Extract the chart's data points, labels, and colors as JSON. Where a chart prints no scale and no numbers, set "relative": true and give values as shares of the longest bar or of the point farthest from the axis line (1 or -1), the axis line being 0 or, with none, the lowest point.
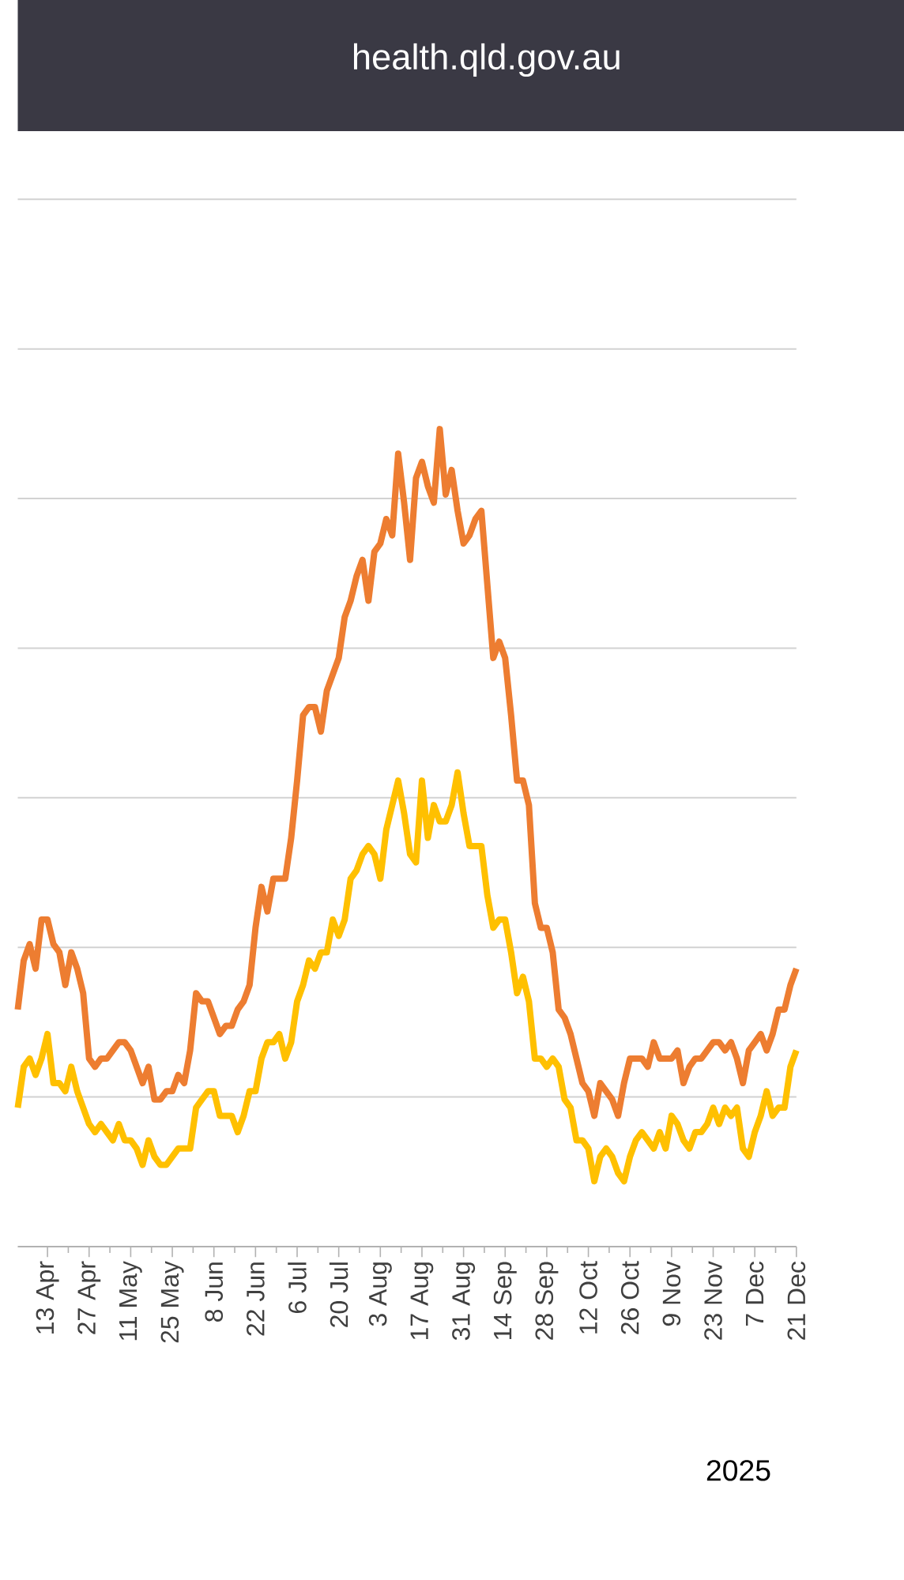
{
  "chart_data": {
    "type": "line",
    "relative": true,
    "grid": "y",
    "annotations": [
      "health.qld.gov.au",
      "2025"
    ],
    "xlim": [
      "2025-04-03",
      "2025-12-21"
    ],
    "xticks": [
      {
        "value": "2025-04-13",
        "label": "13 Apr"
      },
      {
        "value": "2025-04-27",
        "label": "27 Apr"
      },
      {
        "value": "2025-05-11",
        "label": "11 May"
      },
      {
        "value": "2025-05-25",
        "label": "25 May"
      },
      {
        "value": "2025-06-08",
        "label": "8 Jun"
      },
      {
        "value": "2025-06-22",
        "label": "22 Jun"
      },
      {
        "value": "2025-07-06",
        "label": "6 Jul"
      },
      {
        "value": "2025-07-20",
        "label": "20 Jul"
      },
      {
        "value": "2025-08-03",
        "label": "3 Aug"
      },
      {
        "value": "2025-08-17",
        "label": "17 Aug"
      },
      {
        "value": "2025-08-31",
        "label": "31 Aug"
      },
      {
        "value": "2025-09-14",
        "label": "14 Sep"
      },
      {
        "value": "2025-09-28",
        "label": "28 Sep"
      },
      {
        "value": "2025-10-12",
        "label": "12 Oct"
      },
      {
        "value": "2025-10-26",
        "label": "26 Oct"
      },
      {
        "value": "2025-11-09",
        "label": "9 Nov"
      },
      {
        "value": "2025-11-23",
        "label": "23 Nov"
      },
      {
        "value": "2025-12-07",
        "label": "7 Dec"
      },
      {
        "value": "2025-12-21",
        "label": "21 Dec"
      }
    ],
    "x": [
      "2025-04-03",
      "2025-04-05",
      "2025-04-07",
      "2025-04-09",
      "2025-04-11",
      "2025-04-13",
      "2025-04-15",
      "2025-04-17",
      "2025-04-19",
      "2025-04-21",
      "2025-04-23",
      "2025-04-25",
      "2025-04-27",
      "2025-04-29",
      "2025-05-01",
      "2025-05-03",
      "2025-05-05",
      "2025-05-07",
      "2025-05-09",
      "2025-05-11",
      "2025-05-13",
      "2025-05-15",
      "2025-05-17",
      "2025-05-19",
      "2025-05-21",
      "2025-05-23",
      "2025-05-25",
      "2025-05-27",
      "2025-05-29",
      "2025-05-31",
      "2025-06-02",
      "2025-06-04",
      "2025-06-06",
      "2025-06-08",
      "2025-06-10",
      "2025-06-12",
      "2025-06-14",
      "2025-06-16",
      "2025-06-18",
      "2025-06-20",
      "2025-06-22",
      "2025-06-24",
      "2025-06-26",
      "2025-06-28",
      "2025-06-30",
      "2025-07-02",
      "2025-07-04",
      "2025-07-06",
      "2025-07-08",
      "2025-07-10",
      "2025-07-12",
      "2025-07-14",
      "2025-07-16",
      "2025-07-18",
      "2025-07-20",
      "2025-07-22",
      "2025-07-24",
      "2025-07-26",
      "2025-07-28",
      "2025-07-30",
      "2025-08-01",
      "2025-08-03",
      "2025-08-05",
      "2025-08-07",
      "2025-08-09",
      "2025-08-11",
      "2025-08-13",
      "2025-08-15",
      "2025-08-17",
      "2025-08-19",
      "2025-08-21",
      "2025-08-23",
      "2025-08-25",
      "2025-08-27",
      "2025-08-29",
      "2025-08-31",
      "2025-09-02",
      "2025-09-04",
      "2025-09-06",
      "2025-09-08",
      "2025-09-10",
      "2025-09-12",
      "2025-09-14",
      "2025-09-16",
      "2025-09-18",
      "2025-09-20",
      "2025-09-22",
      "2025-09-24",
      "2025-09-26",
      "2025-09-28",
      "2025-09-30",
      "2025-10-02",
      "2025-10-04",
      "2025-10-06",
      "2025-10-08",
      "2025-10-10",
      "2025-10-12",
      "2025-10-14",
      "2025-10-16",
      "2025-10-18",
      "2025-10-20",
      "2025-10-22",
      "2025-10-24",
      "2025-10-26",
      "2025-10-28",
      "2025-10-30",
      "2025-11-01",
      "2025-11-03",
      "2025-11-05",
      "2025-11-07",
      "2025-11-09",
      "2025-11-11",
      "2025-11-13",
      "2025-11-15",
      "2025-11-17",
      "2025-11-19",
      "2025-11-21",
      "2025-11-23",
      "2025-11-25",
      "2025-11-27",
      "2025-11-29",
      "2025-12-01",
      "2025-12-03",
      "2025-12-05",
      "2025-12-07",
      "2025-12-09",
      "2025-12-11",
      "2025-12-13",
      "2025-12-15",
      "2025-12-17",
      "2025-12-19",
      "2025-12-21"
    ],
    "series": [
      {
        "color": "#ed7d31",
        "values": [
          0.29,
          0.35,
          0.37,
          0.34,
          0.4,
          0.4,
          0.37,
          0.36,
          0.32,
          0.36,
          0.34,
          0.31,
          0.23,
          0.22,
          0.23,
          0.23,
          0.24,
          0.25,
          0.25,
          0.24,
          0.22,
          0.2,
          0.22,
          0.18,
          0.18,
          0.19,
          0.19,
          0.21,
          0.2,
          0.24,
          0.31,
          0.3,
          0.3,
          0.28,
          0.26,
          0.27,
          0.27,
          0.29,
          0.3,
          0.32,
          0.39,
          0.44,
          0.41,
          0.45,
          0.45,
          0.45,
          0.5,
          0.57,
          0.65,
          0.66,
          0.66,
          0.63,
          0.68,
          0.7,
          0.72,
          0.77,
          0.79,
          0.82,
          0.84,
          0.79,
          0.85,
          0.86,
          0.89,
          0.87,
          0.97,
          0.91,
          0.84,
          0.94,
          0.96,
          0.93,
          0.91,
          1,
          0.92,
          0.95,
          0.9,
          0.86,
          0.87,
          0.89,
          0.9,
          0.81,
          0.72,
          0.74,
          0.72,
          0.65,
          0.57,
          0.57,
          0.54,
          0.42,
          0.39,
          0.39,
          0.36,
          0.29,
          0.28,
          0.26,
          0.23,
          0.2,
          0.19,
          0.16,
          0.2,
          0.19,
          0.18,
          0.16,
          0.2,
          0.23,
          0.23,
          0.23,
          0.22,
          0.25,
          0.23,
          0.23,
          0.23,
          0.24,
          0.2,
          0.22,
          0.23,
          0.23,
          0.24,
          0.25,
          0.25,
          0.24,
          0.25,
          0.23,
          0.2,
          0.24,
          0.25,
          0.26,
          0.24,
          0.26,
          0.29,
          0.29,
          0.32,
          0.34
        ]
      },
      {
        "color": "#ffc000",
        "values": [
          0.17,
          0.22,
          0.23,
          0.21,
          0.23,
          0.26,
          0.2,
          0.2,
          0.19,
          0.22,
          0.19,
          0.17,
          0.15,
          0.14,
          0.15,
          0.14,
          0.13,
          0.15,
          0.13,
          0.13,
          0.12,
          0.1,
          0.13,
          0.11,
          0.1,
          0.1,
          0.11,
          0.12,
          0.12,
          0.12,
          0.17,
          0.18,
          0.19,
          0.19,
          0.16,
          0.16,
          0.16,
          0.14,
          0.16,
          0.19,
          0.19,
          0.23,
          0.25,
          0.25,
          0.26,
          0.23,
          0.25,
          0.3,
          0.32,
          0.35,
          0.34,
          0.36,
          0.36,
          0.4,
          0.38,
          0.4,
          0.45,
          0.46,
          0.48,
          0.49,
          0.48,
          0.45,
          0.51,
          0.54,
          0.57,
          0.53,
          0.48,
          0.47,
          0.57,
          0.5,
          0.54,
          0.52,
          0.52,
          0.54,
          0.58,
          0.53,
          0.49,
          0.49,
          0.49,
          0.43,
          0.39,
          0.4,
          0.4,
          0.36,
          0.31,
          0.33,
          0.3,
          0.23,
          0.23,
          0.22,
          0.23,
          0.22,
          0.18,
          0.17,
          0.13,
          0.13,
          0.12,
          0.08,
          0.11,
          0.12,
          0.11,
          0.09,
          0.08,
          0.11,
          0.13,
          0.14,
          0.13,
          0.12,
          0.14,
          0.12,
          0.16,
          0.15,
          0.13,
          0.12,
          0.14,
          0.14,
          0.15,
          0.17,
          0.15,
          0.17,
          0.16,
          0.17,
          0.12,
          0.11,
          0.14,
          0.16,
          0.19,
          0.16,
          0.17,
          0.17,
          0.22,
          0.24
        ]
      }
    ]
  }
}
